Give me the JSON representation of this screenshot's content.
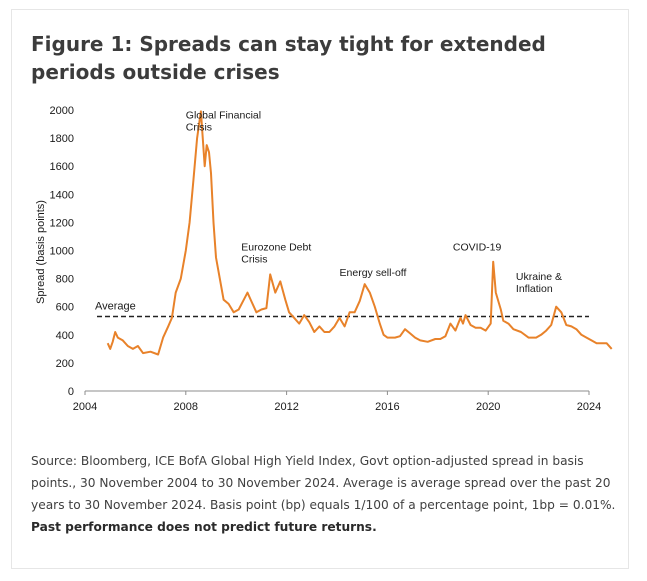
{
  "figure": {
    "title": "Figure 1: Spreads can stay tight for extended periods outside crises",
    "source_text": "Source: Bloomberg, ICE BofA Global High Yield Index, Govt option-adjusted spread in basis points., 30 November 2004 to 30 November 2024. Average is average spread over the past 20 years to 30 November 2024. Basis point (bp) equals 1/100 of a percentage point, 1bp = 0.01%.",
    "source_bold": "Past performance does not predict future returns."
  },
  "chart_data": {
    "type": "line",
    "ylabel": "Spread (basis points)",
    "xlabel": "",
    "xlim": [
      2004,
      2024
    ],
    "ylim": [
      0,
      2000
    ],
    "x_ticks": [
      2004,
      2008,
      2012,
      2016,
      2020,
      2024
    ],
    "y_ticks": [
      0,
      200,
      400,
      600,
      800,
      1000,
      1200,
      1400,
      1600,
      1800,
      2000
    ],
    "grid": false,
    "line_color": "#e8822a",
    "average": {
      "label": "Average",
      "value": 530
    },
    "annotations": [
      {
        "lines": [
          "Global Financial",
          "Crisis"
        ],
        "x": 2008.0,
        "y": 1940
      },
      {
        "lines": [
          "Eurozone Debt",
          "Crisis"
        ],
        "x": 2010.2,
        "y": 1000
      },
      {
        "lines": [
          "Energy sell-off"
        ],
        "x": 2014.1,
        "y": 820
      },
      {
        "lines": [
          "COVID-19"
        ],
        "x": 2018.6,
        "y": 1000
      },
      {
        "lines": [
          "Ukraine &",
          "Inflation"
        ],
        "x": 2021.1,
        "y": 790
      }
    ],
    "series": [
      {
        "x": [
          2004.9,
          2005.0,
          2005.1,
          2005.2,
          2005.3,
          2005.5,
          2005.7,
          2005.9,
          2006.1,
          2006.3,
          2006.6,
          2006.9,
          2007.1,
          2007.3,
          2007.45,
          2007.6,
          2007.8,
          2008.0,
          2008.15,
          2008.3,
          2008.45,
          2008.6,
          2008.75,
          2008.83,
          2008.92,
          2009.0,
          2009.1,
          2009.2,
          2009.35,
          2009.5,
          2009.7,
          2009.9,
          2010.1,
          2010.3,
          2010.45,
          2010.6,
          2010.8,
          2011.0,
          2011.2,
          2011.35,
          2011.55,
          2011.75,
          2011.95,
          2012.1,
          2012.3,
          2012.5,
          2012.7,
          2012.9,
          2013.1,
          2013.3,
          2013.5,
          2013.7,
          2013.9,
          2014.1,
          2014.3,
          2014.5,
          2014.7,
          2014.9,
          2015.1,
          2015.3,
          2015.5,
          2015.7,
          2015.85,
          2016.0,
          2016.1,
          2016.3,
          2016.5,
          2016.7,
          2016.9,
          2017.1,
          2017.3,
          2017.6,
          2017.9,
          2018.1,
          2018.3,
          2018.5,
          2018.7,
          2018.9,
          2019.0,
          2019.1,
          2019.3,
          2019.5,
          2019.7,
          2019.9,
          2020.1,
          2020.2,
          2020.3,
          2020.4,
          2020.5,
          2020.6,
          2020.8,
          2021.0,
          2021.3,
          2021.6,
          2021.9,
          2022.1,
          2022.3,
          2022.5,
          2022.7,
          2022.9,
          2023.1,
          2023.3,
          2023.5,
          2023.7,
          2023.9,
          2024.1,
          2024.3,
          2024.5,
          2024.7,
          2024.9
        ],
        "y": [
          340,
          300,
          350,
          420,
          380,
          360,
          320,
          300,
          320,
          270,
          280,
          260,
          380,
          460,
          520,
          700,
          800,
          1000,
          1200,
          1500,
          1800,
          1990,
          1600,
          1750,
          1700,
          1550,
          1200,
          950,
          800,
          650,
          620,
          560,
          580,
          650,
          700,
          640,
          560,
          580,
          590,
          830,
          700,
          780,
          650,
          560,
          520,
          480,
          540,
          490,
          420,
          460,
          420,
          420,
          460,
          520,
          460,
          560,
          560,
          640,
          760,
          700,
          600,
          480,
          400,
          380,
          380,
          380,
          390,
          440,
          410,
          380,
          360,
          350,
          370,
          370,
          390,
          480,
          430,
          520,
          480,
          540,
          470,
          450,
          450,
          430,
          480,
          920,
          700,
          640,
          580,
          500,
          480,
          440,
          420,
          380,
          380,
          400,
          430,
          470,
          600,
          560,
          470,
          460,
          440,
          400,
          380,
          360,
          340,
          340,
          340,
          300
        ]
      }
    ]
  }
}
